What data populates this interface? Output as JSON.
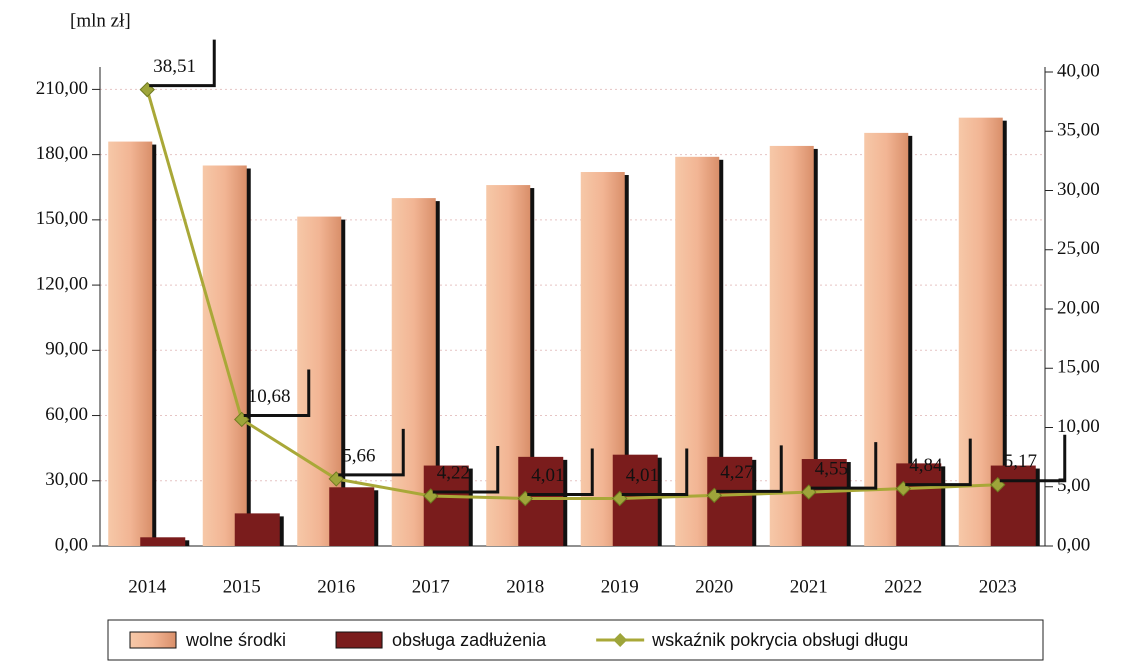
{
  "chart_data": {
    "type": "bar",
    "y_unit_label": "[mln zł]",
    "categories": [
      "2014",
      "2015",
      "2016",
      "2017",
      "2018",
      "2019",
      "2020",
      "2021",
      "2022",
      "2023"
    ],
    "series": [
      {
        "name": "wolne środki",
        "color": "#f2b594",
        "values": [
          186,
          175,
          151.5,
          160,
          166,
          172,
          179,
          184,
          190,
          197
        ]
      },
      {
        "name": "obsługa zadłużenia",
        "color": "#7a1c1c",
        "values": [
          4,
          15,
          27,
          37,
          41,
          42,
          41,
          40,
          38,
          37
        ]
      },
      {
        "name": "wskaźnik pokrycia obsługi długu",
        "color": "#a9a838",
        "type": "line",
        "axis": "y2",
        "values": [
          38.51,
          10.68,
          5.66,
          4.22,
          4.01,
          4.01,
          4.27,
          4.55,
          4.84,
          5.17
        ],
        "value_labels": [
          "38,51",
          "10,68",
          "5,66",
          "4,22",
          "4,01",
          "4,01",
          "4,27",
          "4,55",
          "4,84",
          "5,17"
        ]
      }
    ],
    "ylim": [
      0,
      218
    ],
    "yticks": [
      {
        "value": 0,
        "label": "0,00"
      },
      {
        "value": 30,
        "label": "30,00"
      },
      {
        "value": 60,
        "label": "60,00"
      },
      {
        "value": 90,
        "label": "90,00"
      },
      {
        "value": 120,
        "label": "120,00"
      },
      {
        "value": 150,
        "label": "150,00"
      },
      {
        "value": 180,
        "label": "180,00"
      },
      {
        "value": 210,
        "label": "210,00"
      }
    ],
    "y2lim": [
      0,
      40
    ],
    "y2ticks": [
      {
        "value": 0,
        "label": "0,00"
      },
      {
        "value": 5,
        "label": "5,00"
      },
      {
        "value": 10,
        "label": "10,00"
      },
      {
        "value": 15,
        "label": "15,00"
      },
      {
        "value": 20,
        "label": "20,00"
      },
      {
        "value": 25,
        "label": "25,00"
      },
      {
        "value": 30,
        "label": "30,00"
      },
      {
        "value": 35,
        "label": "35,00"
      },
      {
        "value": 40,
        "label": "40,00"
      }
    ],
    "grid": true,
    "legend": "bottom"
  }
}
